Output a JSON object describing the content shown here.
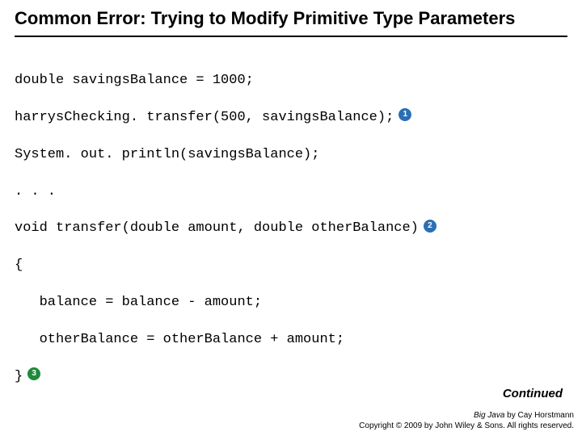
{
  "title": "Common Error: Trying to Modify Primitive Type Parameters",
  "code": {
    "line1": "double savingsBalance = 1000;",
    "line2": "harrysChecking. transfer(500, savingsBalance);",
    "line3": "System. out. println(savingsBalance);",
    "line4": ". . .",
    "line5": "void transfer(double amount, double otherBalance)",
    "line6": "{",
    "line7": "   balance = balance - amount;",
    "line8": "   otherBalance = otherBalance + amount;",
    "line9": "}"
  },
  "markers": {
    "m1": "1",
    "m2": "2",
    "m3": "3",
    "blue_color": "#2a6fb3",
    "green_color": "#1f8a3b"
  },
  "continued": "Continued",
  "footer": {
    "book_title": "Big Java",
    "author_line": " by Cay Horstmann",
    "copyright": "Copyright © 2009 by John Wiley & Sons.  All rights reserved."
  },
  "style": {
    "title_fontsize": 22,
    "code_fontsize": 17,
    "footer_fontsize": 10
  }
}
